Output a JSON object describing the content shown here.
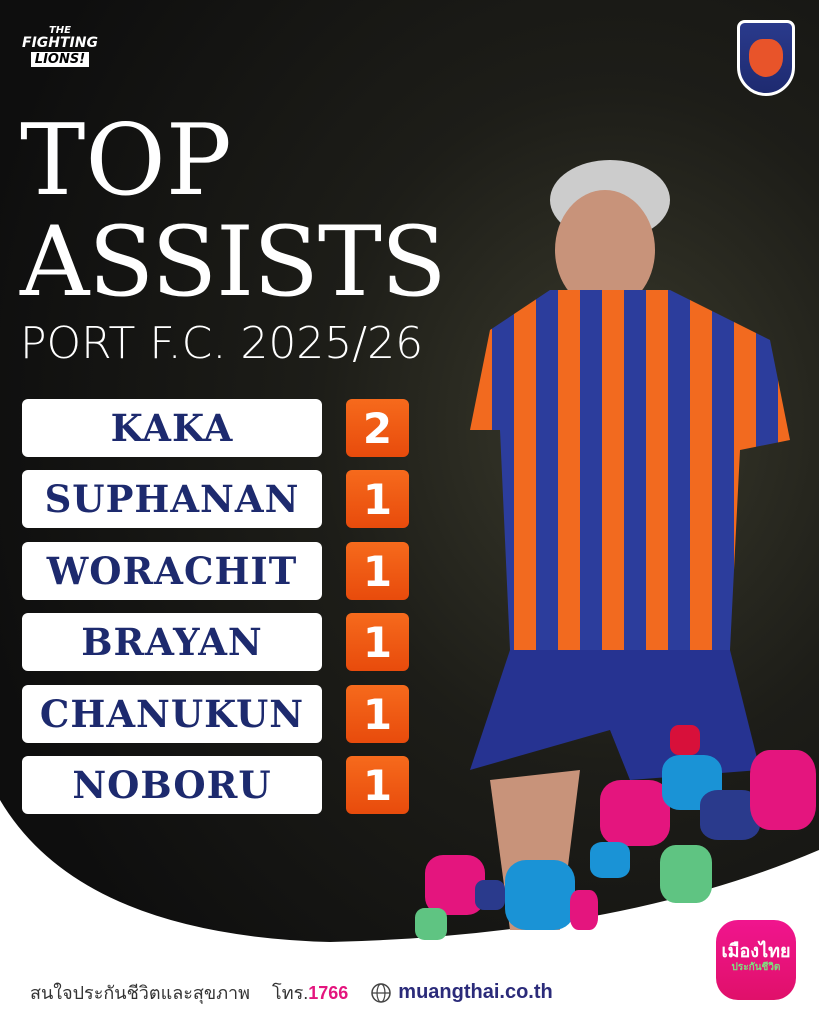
{
  "branding": {
    "logo": "THE FIGHTING LIONS!",
    "logo_lines": [
      "THE",
      "FIGHTING",
      "LIONS!"
    ],
    "crest": "Port F.C. crest"
  },
  "title": {
    "line1": "TOP",
    "line2": "ASSISTS",
    "line3": "PORT F.C. 2025/26"
  },
  "leaderboard": [
    {
      "name": "KAKA",
      "assists": "2"
    },
    {
      "name": "SUPHANAN",
      "assists": "1"
    },
    {
      "name": "WORACHIT",
      "assists": "1"
    },
    {
      "name": "BRAYAN",
      "assists": "1"
    },
    {
      "name": "CHANUKUN",
      "assists": "1"
    },
    {
      "name": "NOBORU",
      "assists": "1"
    }
  ],
  "footer": {
    "tagline": "สนใจประกันชีวิตและสุขภาพ",
    "phone_prefix": "โทร.",
    "phone": "1766",
    "website": "muangthai.co.th",
    "web_icon": "globe-icon"
  },
  "sponsor": {
    "name": "เมืองไทย",
    "sub": "ประกันชีวิต"
  },
  "colors": {
    "accent": "#f05a14",
    "navy": "#1d2a6e",
    "pink": "#e4157e"
  }
}
